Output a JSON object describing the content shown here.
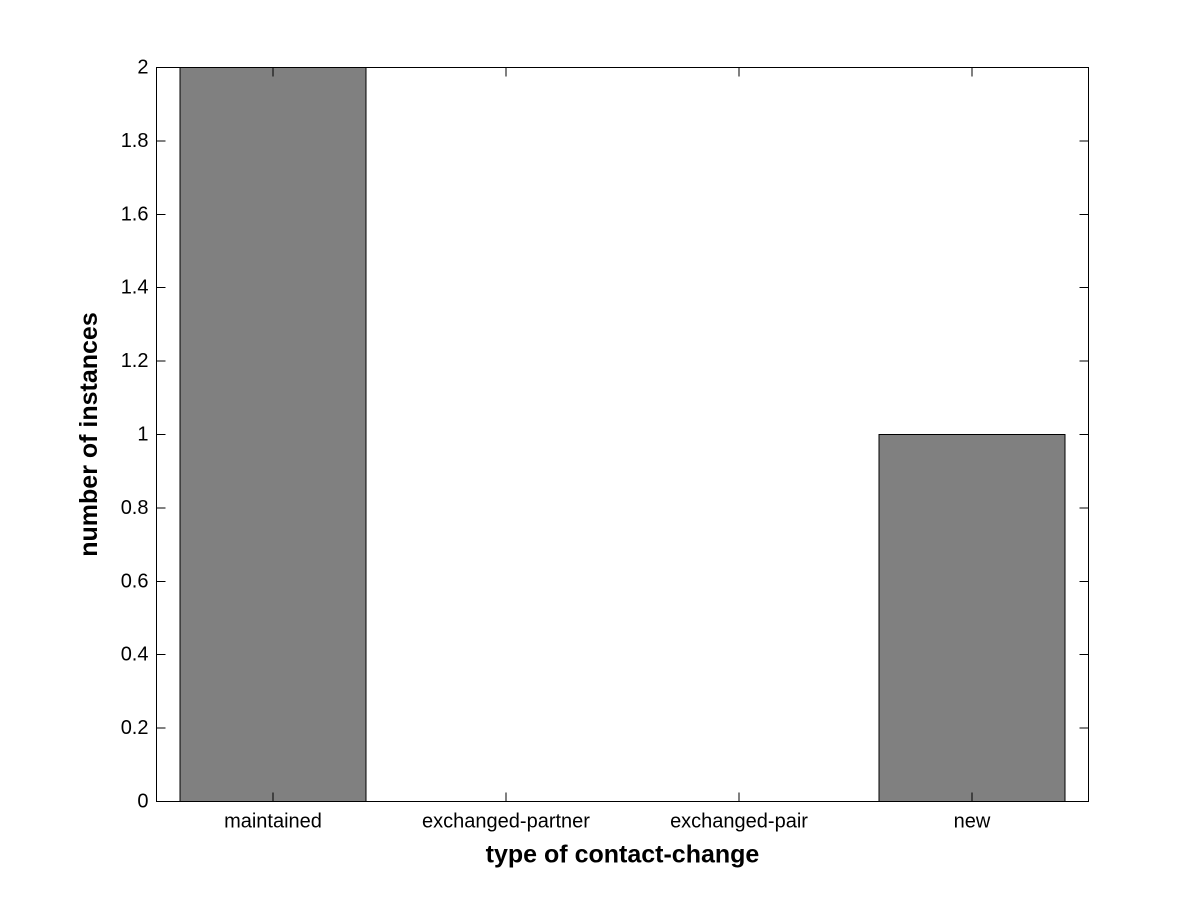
{
  "figure": {
    "background": "#ffffff"
  },
  "chart_data": {
    "type": "bar",
    "categories": [
      "maintained",
      "exchanged-partner",
      "exchanged-pair",
      "new"
    ],
    "values": [
      2,
      0,
      0,
      1
    ],
    "title": "",
    "xlabel": "type of contact-change",
    "ylabel": "number of instances",
    "ylim": [
      0,
      2
    ],
    "yticks": [
      0,
      0.2,
      0.4,
      0.6,
      0.8,
      1,
      1.2,
      1.4,
      1.6,
      1.8,
      2
    ],
    "ytick_labels": [
      "0",
      "0.2",
      "0.4",
      "0.6",
      "0.8",
      "1",
      "1.2",
      "1.4",
      "1.6",
      "1.8",
      "2"
    ],
    "bar_width_fraction": 0.8,
    "bar_color": "#808080",
    "bar_edge_color": "#000000",
    "axis_color": "#000000",
    "grid": false,
    "legend": null,
    "box": true,
    "tick_direction": "in"
  }
}
